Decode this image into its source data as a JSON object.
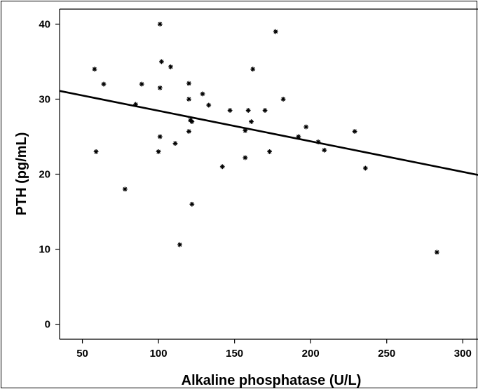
{
  "chart_data": {
    "type": "scatter",
    "title": "",
    "xlabel": "Alkaline phosphatase (U/L)",
    "ylabel": "PTH (pg/mL)",
    "xlim": [
      35,
      310
    ],
    "ylim": [
      -2,
      42
    ],
    "xticks": [
      50,
      100,
      150,
      200,
      250,
      300
    ],
    "yticks": [
      0,
      10,
      20,
      30,
      40
    ],
    "grid": false,
    "legend": "none",
    "marker": "asterisk",
    "marker_color": "#000000",
    "points": [
      {
        "x": 58,
        "y": 34
      },
      {
        "x": 59,
        "y": 23
      },
      {
        "x": 64,
        "y": 32
      },
      {
        "x": 78,
        "y": 18
      },
      {
        "x": 85,
        "y": 29.3
      },
      {
        "x": 89,
        "y": 32
      },
      {
        "x": 100,
        "y": 23
      },
      {
        "x": 101,
        "y": 25
      },
      {
        "x": 101,
        "y": 31.5
      },
      {
        "x": 101,
        "y": 40
      },
      {
        "x": 102,
        "y": 35
      },
      {
        "x": 108,
        "y": 34.3
      },
      {
        "x": 111,
        "y": 24.1
      },
      {
        "x": 114,
        "y": 10.6
      },
      {
        "x": 120,
        "y": 25.7
      },
      {
        "x": 120,
        "y": 30
      },
      {
        "x": 120,
        "y": 32.1
      },
      {
        "x": 121,
        "y": 27.2
      },
      {
        "x": 122,
        "y": 27
      },
      {
        "x": 122,
        "y": 16
      },
      {
        "x": 129,
        "y": 30.7
      },
      {
        "x": 133,
        "y": 29.2
      },
      {
        "x": 142,
        "y": 21
      },
      {
        "x": 147,
        "y": 28.5
      },
      {
        "x": 157,
        "y": 25.8
      },
      {
        "x": 157,
        "y": 22.2
      },
      {
        "x": 159,
        "y": 28.5
      },
      {
        "x": 161,
        "y": 27
      },
      {
        "x": 162,
        "y": 34
      },
      {
        "x": 170,
        "y": 28.5
      },
      {
        "x": 173,
        "y": 23
      },
      {
        "x": 177,
        "y": 39
      },
      {
        "x": 182,
        "y": 30
      },
      {
        "x": 192,
        "y": 25
      },
      {
        "x": 197,
        "y": 26.3
      },
      {
        "x": 205,
        "y": 24.3
      },
      {
        "x": 209,
        "y": 23.2
      },
      {
        "x": 229,
        "y": 25.7
      },
      {
        "x": 236,
        "y": 20.8
      },
      {
        "x": 283,
        "y": 9.6
      }
    ],
    "fit_line": {
      "x1": 35,
      "y1": 31.1,
      "x2": 310,
      "y2": 19.9
    }
  }
}
